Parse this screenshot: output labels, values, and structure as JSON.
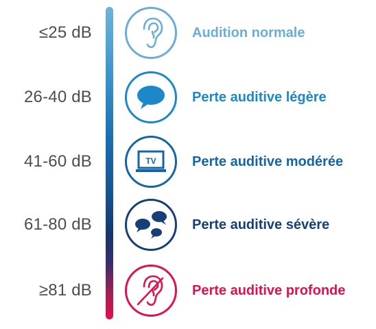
{
  "levels": [
    {
      "db": "≤25 dB",
      "label": "Audition normale",
      "color": "#6aaed8",
      "icon": "ear-icon"
    },
    {
      "db": "26-40 dB",
      "label": "Perte auditive légère",
      "color": "#1c87c9",
      "icon": "speech-bubble-icon"
    },
    {
      "db": "41-60 dB",
      "label": "Perte auditive modérée",
      "color": "#1565a6",
      "icon": "tv-icon",
      "icon_text": "TV"
    },
    {
      "db": "61-80 dB",
      "label": "Perte auditive sévère",
      "color": "#163f78",
      "icon": "multiple-speech-bubbles-icon"
    },
    {
      "db": "≥81 dB",
      "label": "Perte auditive profonde",
      "color": "#e0114f",
      "icon": "crossed-ear-icon"
    }
  ]
}
